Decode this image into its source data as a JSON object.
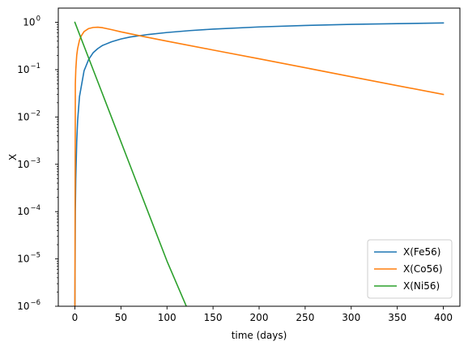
{
  "chart_data": {
    "type": "line",
    "xlabel": "time (days)",
    "ylabel": "X",
    "xlim": [
      -18,
      418
    ],
    "ylim": [
      1e-06,
      2
    ],
    "yscale": "log",
    "xticks": [
      0,
      50,
      100,
      150,
      200,
      250,
      300,
      350,
      400
    ],
    "yticks": [
      {
        "value": 1,
        "base": "10",
        "exp": "0"
      },
      {
        "value": 0.1,
        "base": "10",
        "exp": "−1"
      },
      {
        "value": 0.01,
        "base": "10",
        "exp": "−2"
      },
      {
        "value": 0.001,
        "base": "10",
        "exp": "−3"
      },
      {
        "value": 0.0001,
        "base": "10",
        "exp": "−4"
      },
      {
        "value": 1e-05,
        "base": "10",
        "exp": "−5"
      },
      {
        "value": 1e-06,
        "base": "10",
        "exp": "−6"
      }
    ],
    "grid": false,
    "legend_position": "lower-right",
    "series": [
      {
        "name": "X(Fe56)",
        "color": "#1f77b4",
        "x": [
          0,
          0.5,
          1,
          2,
          3,
          5,
          10,
          15,
          20,
          25,
          30,
          40,
          50,
          60,
          80,
          100,
          125,
          150,
          200,
          250,
          300,
          350,
          400
        ],
        "y": [
          7e-07,
          0.0001,
          0.0005,
          0.003,
          0.0085,
          0.027,
          0.095,
          0.165,
          0.23,
          0.28,
          0.325,
          0.39,
          0.445,
          0.49,
          0.555,
          0.61,
          0.67,
          0.72,
          0.8,
          0.86,
          0.905,
          0.94,
          0.97
        ]
      },
      {
        "name": "X(Co56)",
        "color": "#ff7f0e",
        "x": [
          0,
          0.5,
          1,
          2,
          3,
          5,
          7,
          10,
          15,
          20,
          25,
          30,
          40,
          50,
          75,
          100,
          150,
          200,
          250,
          300,
          350,
          400
        ],
        "y": [
          7e-07,
          0.05,
          0.1,
          0.2,
          0.28,
          0.42,
          0.52,
          0.64,
          0.74,
          0.78,
          0.79,
          0.77,
          0.7,
          0.63,
          0.5,
          0.4,
          0.26,
          0.17,
          0.11,
          0.071,
          0.046,
          0.03
        ]
      },
      {
        "name": "X(Ni56)",
        "color": "#2ca02c",
        "x": [
          0,
          20,
          40,
          60,
          80,
          100,
          121
        ],
        "y": [
          1,
          0.098,
          0.0096,
          0.00094,
          9.2e-05,
          9e-06,
          1e-06
        ]
      }
    ]
  }
}
